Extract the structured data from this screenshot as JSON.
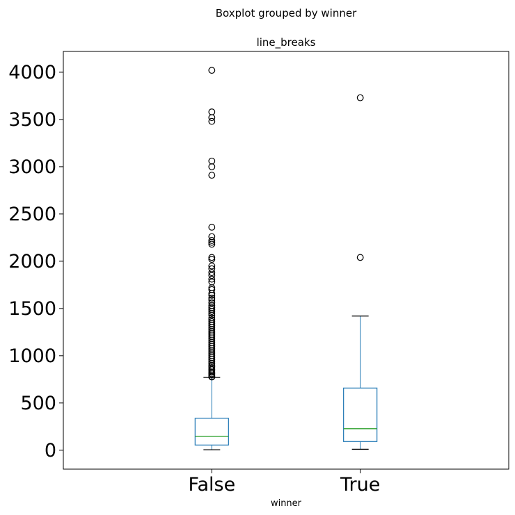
{
  "chart_data": {
    "type": "boxplot",
    "title": "Boxplot grouped by winner",
    "subtitle": "line_breaks",
    "xlabel": "winner",
    "ylabel": "",
    "categories": [
      "False",
      "True"
    ],
    "ylim": [
      -200,
      4220
    ],
    "yticks": [
      0,
      500,
      1000,
      1500,
      2000,
      2500,
      3000,
      3500,
      4000
    ],
    "ytick_labels": [
      "0",
      "500",
      "1000",
      "1500",
      "2000",
      "2500",
      "3000",
      "3500",
      "4000"
    ],
    "grid": false,
    "colors": {
      "box": "#1f77b4",
      "median": "#2ca02c",
      "cap": "#000000",
      "flier": "#000000"
    },
    "boxes": [
      {
        "category": "False",
        "whisker_low": 5,
        "q1": 55,
        "median": 148,
        "q3": 338,
        "whisker_high": 770,
        "fliers": [
          4020,
          3580,
          3520,
          3480,
          3060,
          3000,
          2910,
          2360,
          2260,
          2220,
          2200,
          2180,
          2040,
          2020,
          1950,
          1920,
          1880,
          1850,
          1810,
          1780,
          1720,
          1700,
          1660,
          1640,
          1610,
          1590,
          1560,
          1530,
          1510,
          1490,
          1470,
          1450,
          1430,
          1400,
          1380,
          1360,
          1340,
          1320,
          1300,
          1280,
          1260,
          1240,
          1220,
          1200,
          1180,
          1160,
          1140,
          1120,
          1100,
          1080,
          1060,
          1040,
          1020,
          1000,
          980,
          960,
          940,
          920,
          900,
          885,
          870,
          855,
          840,
          825,
          810,
          795,
          780,
          775
        ]
      },
      {
        "category": "True",
        "whisker_low": 10,
        "q1": 92,
        "median": 228,
        "q3": 658,
        "whisker_high": 1420,
        "fliers": [
          3730,
          2040
        ]
      }
    ]
  }
}
